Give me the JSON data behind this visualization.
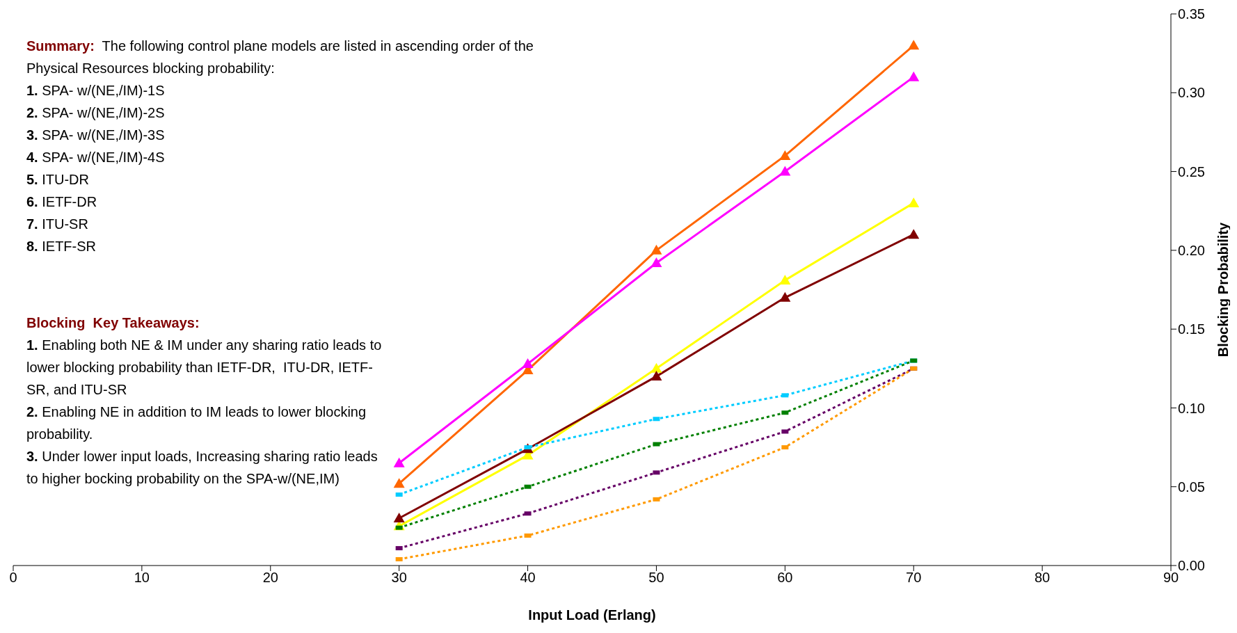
{
  "chart_data": {
    "type": "line",
    "xlabel": "Input Load (Erlang)",
    "ylabel": "Blocking Probability",
    "x": [
      30,
      40,
      50,
      60,
      70
    ],
    "series": [
      {
        "color": "#ff6600",
        "values": [
          0.052,
          0.124,
          0.2,
          0.26,
          0.33
        ],
        "marker": "triangle",
        "line_style": "solid"
      },
      {
        "color": "#ff00ff",
        "values": [
          0.065,
          0.128,
          0.192,
          0.25,
          0.31
        ],
        "marker": "triangle",
        "line_style": "solid"
      },
      {
        "color": "#ffff00",
        "values": [
          0.025,
          0.07,
          0.125,
          0.181,
          0.23
        ],
        "marker": "triangle",
        "line_style": "solid"
      },
      {
        "color": "#800000",
        "values": [
          0.03,
          0.074,
          0.12,
          0.17,
          0.21
        ],
        "marker": "triangle",
        "line_style": "solid"
      },
      {
        "color": "#00ccff",
        "values": [
          0.045,
          0.075,
          0.093,
          0.108,
          0.13
        ],
        "marker": "square",
        "line_style": "dotted"
      },
      {
        "color": "#008000",
        "values": [
          0.024,
          0.05,
          0.077,
          0.097,
          0.13
        ],
        "marker": "square",
        "line_style": "dotted"
      },
      {
        "color": "#660066",
        "values": [
          0.011,
          0.033,
          0.059,
          0.085,
          0.125
        ],
        "marker": "square",
        "line_style": "dotted"
      },
      {
        "color": "#ff9900",
        "values": [
          0.004,
          0.019,
          0.042,
          0.075,
          0.125
        ],
        "marker": "square",
        "line_style": "dotted"
      }
    ],
    "xlim": [
      0,
      90
    ],
    "xticks": [
      0,
      10,
      20,
      30,
      40,
      50,
      60,
      70,
      80,
      90
    ],
    "ylim": [
      0,
      0.35
    ],
    "yticks": [
      {
        "value": 0,
        "label": "0.00"
      },
      {
        "value": 0.05,
        "label": "0.05"
      },
      {
        "value": 0.1,
        "label": "0.10"
      },
      {
        "value": 0.15,
        "label": "0.15"
      },
      {
        "value": 0.2,
        "label": "0.20"
      },
      {
        "value": 0.25,
        "label": "0.25"
      },
      {
        "value": 0.3,
        "label": "0.30"
      },
      {
        "value": 0.35,
        "label": "0.35"
      }
    ],
    "grid": false,
    "legend": false,
    "annotations": [
      "Summary:  The following control plane models are listed in ascending order of the Physical Resources blocking probability:",
      "1. SPA- w/(NE,/IM)-1S",
      "2. SPA- w/(NE,/IM)-2S",
      "3. SPA- w/(NE,/IM)-3S",
      "4. SPA- w/(NE,/IM)-4S",
      "5. ITU-DR",
      "6. IETF-DR",
      "7. ITU-SR",
      "8. IETF-SR",
      "Blocking  Key Takeaways:",
      "1. Enabling both NE & IM under any sharing ratio leads to lower blocking probability than IETF-DR,  ITU-DR, IETF-SR, and ITU-SR",
      "2. Enabling NE in addition to IM leads to lower blocking probability.",
      "3. Under lower input loads, Increasing sharing ratio leads to higher bocking probability on the SPA-w/(NE,IM)"
    ]
  }
}
